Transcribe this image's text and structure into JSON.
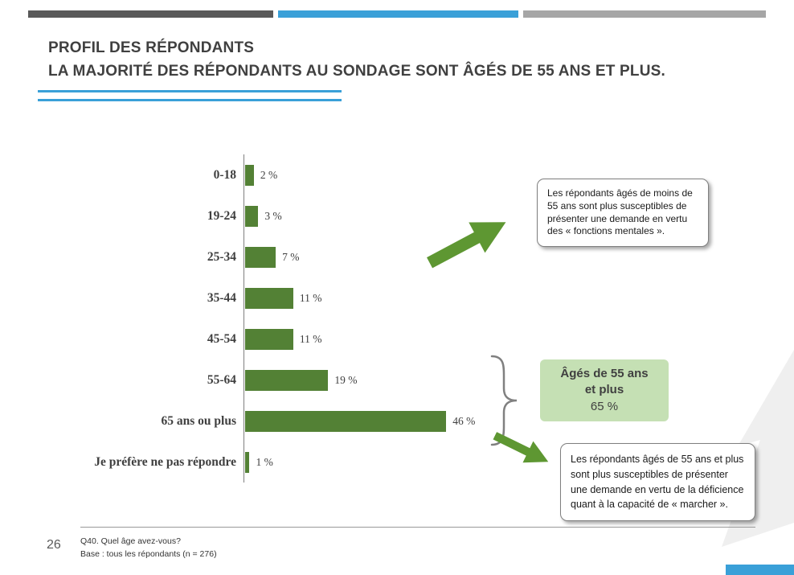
{
  "slide": {
    "title_line1": "PROFIL DES RÉPONDANTS",
    "title_line2": "LA MAJORITÉ DES RÉPONDANTS AU SONDAGE SONT ÂGÉS DE 55 ANS ET PLUS.",
    "page_number": "26",
    "footnote_line1": "Q40. Quel âge avez-vous?",
    "footnote_line2": "Base : tous les répondants (n = 276)"
  },
  "chart_data": {
    "type": "bar",
    "orientation": "horizontal",
    "categories": [
      "0-18",
      "19-24",
      "25-34",
      "35-44",
      "45-54",
      "55-64",
      "65 ans ou plus",
      "Je préfère ne pas répondre"
    ],
    "values": [
      2,
      3,
      7,
      11,
      11,
      19,
      46,
      1
    ],
    "value_labels": [
      "2 %",
      "3 %",
      "7 %",
      "11 %",
      "11 %",
      "19 %",
      "46 %",
      "1 %"
    ],
    "xlim": [
      0,
      50
    ],
    "grid": false,
    "legend": false,
    "bar_color": "#538135"
  },
  "annotations": {
    "callout_under_55": "Les répondants âgés de moins de 55 ans sont plus susceptibles de présenter une demande en vertu des « fonctions mentales ».",
    "callout_55_plus": "Les répondants âgés de 55 ans et plus sont plus susceptibles de présenter une demande en vertu de la déficience quant à la capacité de « marcher ».",
    "highlight_line1": "Âgés de 55 ans",
    "highlight_line2": "et plus",
    "highlight_line3": "65 %"
  },
  "colors": {
    "accent_blue": "#3AA0D8",
    "bar_green": "#538135",
    "arrow_green": "#5E9732",
    "highlight_green": "#C5E0B4",
    "brace_gray": "#808080",
    "dark_gray": "#595959",
    "light_gray": "#A6A6A6",
    "title_gray": "#404040"
  }
}
